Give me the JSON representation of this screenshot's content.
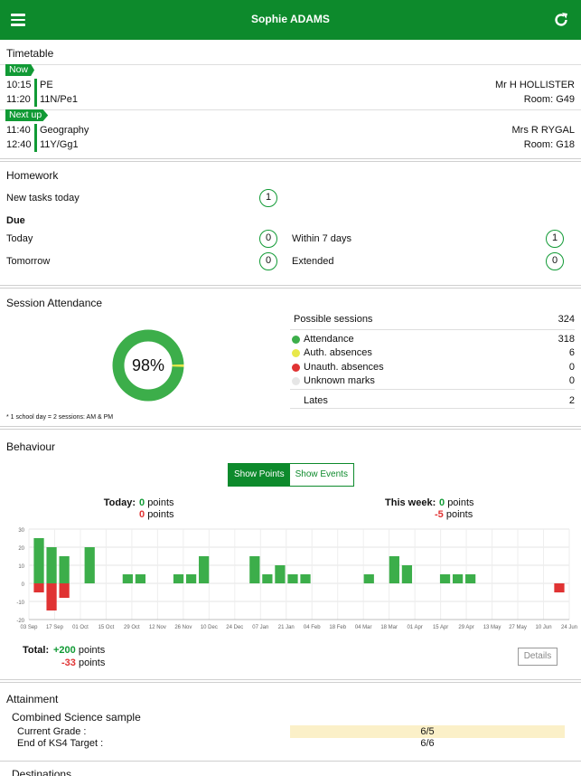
{
  "header": {
    "title": "Sophie ADAMS",
    "menu_icon": "hamburger-icon",
    "refresh_icon": "refresh-icon",
    "color": "#0d8a2c"
  },
  "timetable": {
    "title": "Timetable",
    "now": {
      "tag": "Now",
      "start": "10:15",
      "end": "11:20",
      "subject": "PE",
      "group": "11N/Pe1",
      "teacher": "Mr H HOLLISTER",
      "room": "Room: G49"
    },
    "next": {
      "tag": "Next up",
      "start": "11:40",
      "end": "12:40",
      "subject": "Geography",
      "group": "11Y/Gg1",
      "teacher": "Mrs R RYGAL",
      "room": "Room: G18"
    }
  },
  "homework": {
    "title": "Homework",
    "new_tasks_label": "New tasks today",
    "new_tasks_count": "1",
    "due_label": "Due",
    "today_label": "Today",
    "today_count": "0",
    "tomorrow_label": "Tomorrow",
    "tomorrow_count": "0",
    "within7_label": "Within 7 days",
    "within7_count": "1",
    "extended_label": "Extended",
    "extended_count": "0"
  },
  "attendance": {
    "title": "Session Attendance",
    "percent": "98%",
    "percent_value": 98,
    "footnote": "* 1 school day = 2 sessions: AM & PM",
    "possible_label": "Possible sessions",
    "possible_value": "324",
    "rows": [
      {
        "label": "Attendance",
        "value": "318",
        "color": "#3cae4a"
      },
      {
        "label": "Auth. absences",
        "value": "6",
        "color": "#e8e84a"
      },
      {
        "label": "Unauth. absences",
        "value": "0",
        "color": "#e03333"
      },
      {
        "label": "Unknown marks",
        "value": "0",
        "color": "#e6e6e6"
      }
    ],
    "lates_label": "Lates",
    "lates_value": "2"
  },
  "behaviour": {
    "title": "Behaviour",
    "show_points": "Show Points",
    "show_events": "Show Events",
    "today_label": "Today:",
    "today_pos": "0",
    "today_neg": "0",
    "week_label": "This week:",
    "week_pos": "0",
    "week_neg": "-5",
    "points_word": "points",
    "total_label": "Total:",
    "total_pos": "+200",
    "total_neg": "-33",
    "details": "Details"
  },
  "chart_data": {
    "type": "bar",
    "ylim": [
      -20,
      30
    ],
    "yticks": [
      "30",
      "20",
      "10",
      "0",
      "-10",
      "-20"
    ],
    "xticks": [
      "03 Sep",
      "17 Sep",
      "01 Oct",
      "15 Oct",
      "29 Oct",
      "12 Nov",
      "26 Nov",
      "10 Dec",
      "24 Dec",
      "07 Jan",
      "21 Jan",
      "04 Feb",
      "18 Feb",
      "04 Mar",
      "18 Mar",
      "01 Apr",
      "15 Apr",
      "29 Apr",
      "13 May",
      "27 May",
      "10 Jun",
      "24 Jun"
    ],
    "grid": true,
    "positive_color": "#3cae4a",
    "negative_color": "#e03333",
    "series": [
      {
        "values": [
          25,
          20,
          15,
          0,
          20,
          0,
          0,
          5,
          5,
          0,
          0,
          5,
          5,
          15,
          0,
          0,
          0,
          15,
          5,
          10,
          5,
          5,
          0,
          0,
          0,
          0,
          5,
          0,
          15,
          10,
          0,
          0,
          5,
          5,
          5,
          0,
          0,
          0,
          0,
          0,
          0,
          0
        ]
      },
      {
        "values": [
          -5,
          -15,
          -8,
          0,
          0,
          0,
          0,
          0,
          0,
          0,
          0,
          0,
          0,
          0,
          0,
          0,
          0,
          0,
          0,
          0,
          0,
          0,
          0,
          0,
          0,
          0,
          0,
          0,
          0,
          0,
          0,
          0,
          0,
          0,
          0,
          0,
          0,
          0,
          0,
          0,
          0,
          -5
        ]
      }
    ]
  },
  "attainment": {
    "title": "Attainment",
    "subject": "Combined Science sample",
    "current_label": "Current Grade :",
    "current_value": "6/5",
    "current_bg": "#fbf0c8",
    "target_label": "End of KS4 Target :",
    "target_value": "6/6"
  },
  "destinations": {
    "title": "Destinations"
  }
}
